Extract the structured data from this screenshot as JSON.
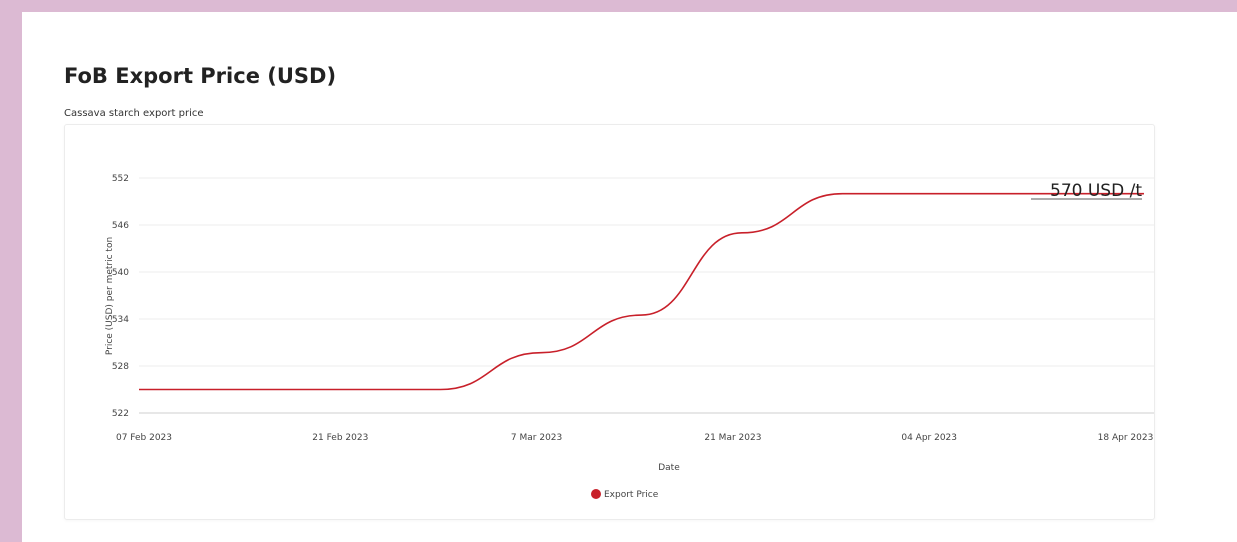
{
  "header": {
    "title": "FoB Export Price (USD)",
    "subtitle": "Cassava starch export price"
  },
  "chart_data": {
    "type": "line",
    "xlabel": "Date",
    "ylabel": "Price (USD) per metric ton",
    "x_ticks": [
      "07 Feb 2023",
      "21 Feb 2023",
      "7 Mar 2023",
      "21 Mar 2023",
      "04 Apr 2023",
      "18 Apr 2023"
    ],
    "y_ticks": [
      522,
      528,
      534,
      540,
      546,
      552
    ],
    "ylim": [
      522,
      552
    ],
    "grid": true,
    "legend": "bottom",
    "series": [
      {
        "name": "Export Price",
        "color": "#c8202a",
        "points": [
          {
            "x": "2023-02-07",
            "y": 525
          },
          {
            "x": "2023-02-28",
            "y": 525
          },
          {
            "x": "2023-03-07",
            "y": 529.7
          },
          {
            "x": "2023-03-14",
            "y": 534.5
          },
          {
            "x": "2023-03-21",
            "y": 545
          },
          {
            "x": "2023-03-28",
            "y": 550
          },
          {
            "x": "2023-04-04",
            "y": 550
          },
          {
            "x": "2023-04-18",
            "y": 550
          }
        ]
      }
    ],
    "annotation": "570 USD /t"
  }
}
